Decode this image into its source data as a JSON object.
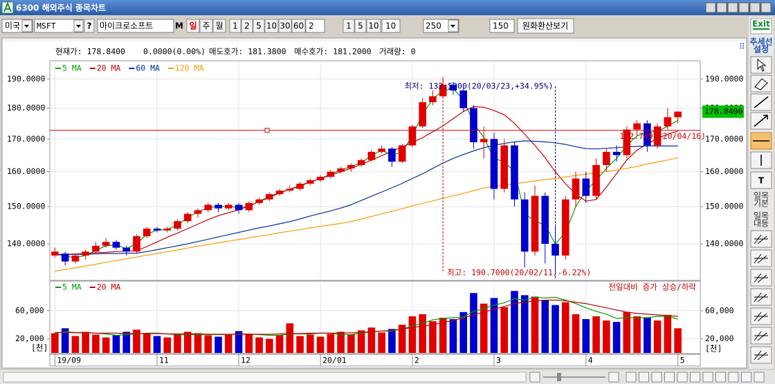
{
  "window": {
    "title": "6300 해외주식 종목차트"
  },
  "toolbar": {
    "market": "미국",
    "symbol": "MSFT",
    "help": "?",
    "name": "마이크로소프트",
    "m": "M",
    "periods": [
      "일",
      "주",
      "월"
    ],
    "units": [
      "1",
      "2",
      "5",
      "10",
      "30",
      "60"
    ],
    "unit_input": "2",
    "minutes": [
      "1",
      "5",
      "10"
    ],
    "minute_input": "10",
    "count": "250",
    "count2": "150",
    "convert": "원화환산보기"
  },
  "info": {
    "price": "현재가: 178.8400",
    "change": "0.0000(0.00%)",
    "ask": "매도호가: 181.3800",
    "bid": "매수호가: 181.2000",
    "volume": "거래량: 0"
  },
  "side_toolbar": {
    "exit": "Exit",
    "trend": [
      "추세선",
      "설정"
    ],
    "text_tool": "T",
    "ichimoku_basic": [
      "일목",
      "기본"
    ],
    "ichimoku_equal": [
      "일목",
      "대등"
    ]
  },
  "chart_data": [
    {
      "type": "candlestick",
      "log_scale": true,
      "grid": true,
      "categories": [
        "19/09",
        null,
        null,
        null,
        null,
        null,
        null,
        null,
        null,
        null,
        "11",
        null,
        null,
        null,
        null,
        null,
        null,
        null,
        "12",
        null,
        null,
        null,
        null,
        null,
        null,
        null,
        "20/01",
        null,
        null,
        null,
        null,
        null,
        null,
        null,
        null,
        "2",
        null,
        null,
        null,
        null,
        null,
        null,
        null,
        "3",
        null,
        null,
        null,
        null,
        null,
        null,
        null,
        null,
        "4",
        null,
        null,
        null,
        null,
        null,
        null,
        null,
        null,
        "5"
      ],
      "ohlc": [
        [
          137,
          139,
          136.5,
          138
        ],
        [
          137.5,
          138,
          134.5,
          135.5
        ],
        [
          135.5,
          137.5,
          135,
          137
        ],
        [
          137,
          138.5,
          136,
          138
        ],
        [
          138,
          140.5,
          137.5,
          139.5
        ],
        [
          139.5,
          141.5,
          139,
          140.5
        ],
        [
          140.5,
          141,
          138.5,
          139
        ],
        [
          139,
          139.5,
          137,
          138
        ],
        [
          138,
          142.5,
          137.5,
          142
        ],
        [
          142,
          144.5,
          141.5,
          144
        ],
        [
          144,
          144.5,
          143,
          143.5
        ],
        [
          143.5,
          144.5,
          143,
          144
        ],
        [
          144,
          146.5,
          143.5,
          146
        ],
        [
          146,
          148.5,
          145.5,
          148
        ],
        [
          148,
          149.5,
          147,
          149
        ],
        [
          149,
          151,
          148.5,
          150.5
        ],
        [
          150.5,
          151,
          148.5,
          149.5
        ],
        [
          149.5,
          151,
          149,
          150.5
        ],
        [
          150.5,
          151,
          148,
          149
        ],
        [
          149,
          151.5,
          148.5,
          151
        ],
        [
          151,
          152.5,
          150.5,
          152
        ],
        [
          152,
          154,
          151.5,
          153.5
        ],
        [
          153.5,
          155,
          153,
          154.5
        ],
        [
          154.5,
          156,
          154,
          155
        ],
        [
          155,
          157,
          154.5,
          156.5
        ],
        [
          156.5,
          158,
          156,
          157.5
        ],
        [
          157.5,
          159,
          157,
          158.5
        ],
        [
          158.5,
          160.5,
          158,
          160
        ],
        [
          160,
          161.5,
          159.5,
          161
        ],
        [
          161,
          162.5,
          160,
          162
        ],
        [
          162,
          164,
          161.5,
          163.5
        ],
        [
          163.5,
          166.5,
          163,
          166
        ],
        [
          166,
          168,
          165.5,
          167
        ],
        [
          167,
          167.5,
          161.5,
          163
        ],
        [
          163,
          168.5,
          162.5,
          168
        ],
        [
          168,
          174.5,
          167.5,
          174
        ],
        [
          174,
          183.5,
          173.5,
          182
        ],
        [
          182,
          186,
          181,
          184
        ],
        [
          184,
          190.7,
          183.5,
          188
        ],
        [
          188,
          189,
          184.5,
          186
        ],
        [
          186,
          187,
          179,
          180
        ],
        [
          180,
          181,
          167,
          169
        ],
        [
          169,
          174,
          164,
          170
        ],
        [
          170,
          172,
          152,
          155
        ],
        [
          155,
          170,
          154,
          168
        ],
        [
          168,
          169,
          150,
          152
        ],
        [
          152,
          154,
          134,
          138
        ],
        [
          138,
          156,
          137,
          153
        ],
        [
          153,
          154,
          135,
          140
        ],
        [
          140,
          145,
          132.52,
          137
        ],
        [
          137,
          153,
          136,
          152
        ],
        [
          152,
          160,
          150,
          158
        ],
        [
          158,
          160,
          151,
          153
        ],
        [
          153,
          164,
          152,
          162
        ],
        [
          162,
          167,
          160,
          166
        ],
        [
          166,
          168,
          163,
          165
        ],
        [
          165,
          174,
          164,
          173
        ],
        [
          173,
          176,
          171,
          175
        ],
        [
          175,
          176,
          166,
          168
        ],
        [
          168,
          175,
          167,
          174
        ],
        [
          174,
          180,
          173,
          177
        ],
        [
          177,
          179,
          175,
          178.84
        ]
      ],
      "up_color": "#e00000",
      "down_color": "#0000cc",
      "ylim": [
        131,
        196
      ],
      "yticks": [
        {
          "value": 140,
          "label": "140.0000"
        },
        {
          "value": 150,
          "label": "150.0000"
        },
        {
          "value": 160,
          "label": "160.0000"
        },
        {
          "value": 170,
          "label": "170.0000"
        },
        {
          "value": 180,
          "label": "180.0000"
        },
        {
          "value": 190,
          "label": "190.0000"
        }
      ],
      "series": [
        {
          "name": "5 MA",
          "color": "#00a000",
          "values": [
            137.5,
            136.8,
            136.5,
            137.0,
            138.3,
            139.5,
            139.7,
            138.8,
            140.0,
            142.5,
            143.6,
            143.8,
            145.0,
            147.0,
            148.5,
            149.8,
            150.0,
            150.0,
            149.8,
            150.0,
            151.5,
            152.8,
            154.0,
            154.8,
            155.8,
            157.0,
            158.0,
            159.3,
            160.5,
            161.5,
            162.8,
            164.8,
            166.5,
            165.0,
            166.0,
            171.0,
            178.0,
            183.0,
            186.0,
            186.5,
            183.0,
            175.0,
            170.5,
            164.0,
            163.0,
            160.0,
            148.0,
            146.0,
            145.0,
            140.0,
            143.0,
            150.0,
            154.5,
            157.5,
            161.0,
            164.0,
            168.0,
            171.0,
            172.0,
            172.5,
            174.0,
            176.0
          ]
        },
        {
          "name": "20 MA",
          "color": "#c00000",
          "values": [
            137.2,
            137.3,
            137.4,
            137.5,
            137.7,
            137.8,
            138.0,
            138.1,
            138.2,
            139.3,
            140.5,
            141.7,
            142.8,
            144.0,
            145.2,
            146.4,
            147.5,
            148.3,
            149.1,
            150.2,
            151.4,
            152.6,
            153.8,
            154.9,
            156.0,
            157.0,
            158.0,
            159.0,
            160.0,
            161.0,
            162.2,
            163.5,
            164.8,
            166.2,
            167.5,
            168.9,
            170.4,
            172.3,
            174.2,
            176.5,
            178.9,
            180.5,
            180.3,
            179.2,
            177.8,
            175.0,
            171.5,
            168.0,
            164.2,
            160.0,
            156.5,
            153.5,
            151.5,
            152.0,
            155.5,
            159.5,
            163.5,
            166.5,
            168.5,
            170.2,
            171.5,
            172.5
          ]
        },
        {
          "name": "60 MA",
          "color": "#0030a0",
          "values": [
            137.2,
            137.2,
            137.3,
            137.3,
            137.4,
            137.5,
            137.5,
            137.6,
            137.6,
            138.0,
            138.5,
            139.0,
            139.5,
            140.0,
            140.6,
            141.2,
            141.8,
            142.4,
            143.0,
            143.6,
            144.2,
            144.7,
            145.3,
            145.9,
            146.6,
            147.4,
            148.1,
            148.8,
            149.6,
            150.5,
            151.7,
            152.9,
            154.1,
            155.3,
            156.6,
            158.0,
            159.4,
            161.0,
            162.6,
            164.0,
            165.2,
            166.3,
            167.3,
            168.0,
            168.6,
            169.1,
            169.4,
            169.3,
            169.1,
            168.8,
            168.3,
            167.6,
            167.0,
            166.9,
            167.1,
            167.3,
            167.5,
            167.7,
            167.8,
            167.8,
            167.8,
            167.8
          ]
        },
        {
          "name": "120 MA",
          "color": "#ff9900",
          "values": [
            133.1,
            133.5,
            133.9,
            134.4,
            134.8,
            135.3,
            135.7,
            136.2,
            136.6,
            137.1,
            137.5,
            138.0,
            138.4,
            138.9,
            139.4,
            139.8,
            140.3,
            140.7,
            141.1,
            141.6,
            142.0,
            142.4,
            142.9,
            143.3,
            143.7,
            144.2,
            144.6,
            145.0,
            145.4,
            145.9,
            146.6,
            147.3,
            148.0,
            148.7,
            149.4,
            150.2,
            150.9,
            151.6,
            152.3,
            153.0,
            153.7,
            154.5,
            155.3,
            155.7,
            156.1,
            156.5,
            156.9,
            157.3,
            157.7,
            158.0,
            158.5,
            158.9,
            159.3,
            159.7,
            160.1,
            160.5,
            161.0,
            161.6,
            162.3,
            162.9,
            163.5,
            164.2
          ]
        }
      ],
      "reference_line": {
        "value": 172.7492,
        "label": "172.7492(20/04/16)",
        "color": "#d00000"
      },
      "last_price": {
        "value": 178.84,
        "label": "178.8400",
        "color": "#00c000"
      },
      "annotations": [
        {
          "text": "최저: 132.5200(20/03/23,+34.95%)",
          "color": "#000080"
        },
        {
          "text": "최고: 190.7000(20/02/11,-6.22%)",
          "color": "#c00000"
        }
      ]
    },
    {
      "type": "bar",
      "values": [
        28000,
        35000,
        24000,
        30000,
        26000,
        22000,
        25000,
        30000,
        33000,
        27000,
        24000,
        22000,
        26000,
        30000,
        28000,
        25000,
        23000,
        26000,
        31000,
        27000,
        22000,
        20000,
        25000,
        42000,
        24000,
        26000,
        23000,
        27000,
        30000,
        26000,
        32000,
        36000,
        29000,
        34000,
        40000,
        52000,
        55000,
        45000,
        50000,
        48000,
        58000,
        85000,
        70000,
        78000,
        65000,
        88000,
        82000,
        80000,
        75000,
        68000,
        72000,
        55000,
        48000,
        52000,
        46000,
        44000,
        58000,
        52000,
        50000,
        46000,
        54000,
        35000
      ],
      "up_color": "#e00000",
      "down_color": "#0000cc",
      "ylim": [
        0,
        101000
      ],
      "yticks": [
        {
          "value": 20000,
          "label": "20,000"
        },
        {
          "value": 60000,
          "label": "60,000"
        }
      ],
      "unit_label": "[천]",
      "note": "전일대비 증가 상승/하락",
      "series": [
        {
          "name": "5 MA",
          "color": "#00a000",
          "values": [
            28000,
            30000,
            29000,
            29000,
            28000,
            27000,
            25000,
            26000,
            27000,
            28000,
            28000,
            27000,
            26000,
            26000,
            26000,
            26000,
            26000,
            26000,
            27000,
            27000,
            26000,
            25000,
            25000,
            27000,
            27000,
            27000,
            28000,
            28000,
            26000,
            26000,
            28000,
            30000,
            31000,
            31000,
            34000,
            38000,
            42000,
            47000,
            49000,
            50000,
            51000,
            59000,
            63000,
            68000,
            71000,
            77000,
            75000,
            79000,
            78000,
            79000,
            75000,
            70000,
            64000,
            59000,
            55000,
            49000,
            50000,
            50000,
            50000,
            52000,
            52000,
            48000
          ]
        },
        {
          "name": "20 MA",
          "color": "#c00000",
          "values": [
            29000,
            29000,
            28500,
            28500,
            28000,
            28000,
            28000,
            27500,
            27500,
            27500,
            27500,
            27000,
            27000,
            27000,
            27000,
            26500,
            26500,
            26500,
            26500,
            26500,
            26500,
            26500,
            27000,
            27500,
            27500,
            28000,
            28000,
            28000,
            28000,
            28500,
            29000,
            30000,
            31000,
            32000,
            34000,
            36000,
            38000,
            40000,
            43000,
            46000,
            50000,
            54000,
            58000,
            62000,
            66000,
            70000,
            72000,
            74000,
            75000,
            75000,
            74000,
            72000,
            70000,
            67000,
            64000,
            61000,
            58000,
            56000,
            55000,
            54000,
            53000,
            52000
          ]
        }
      ]
    }
  ]
}
